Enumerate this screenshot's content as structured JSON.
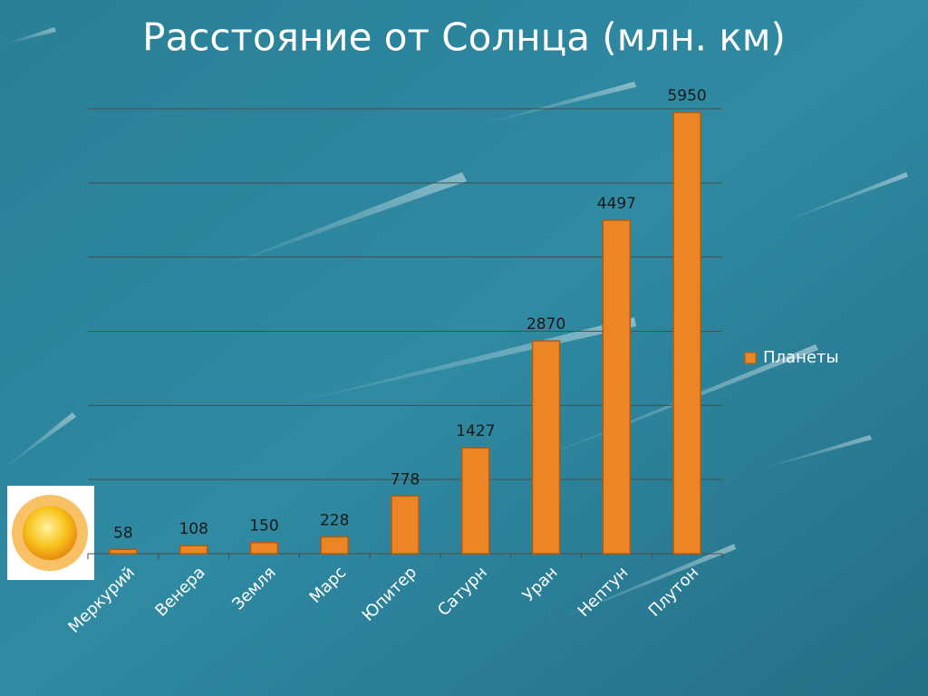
{
  "chart_data": {
    "type": "bar",
    "title": "Расстояние от Солнца (млн. км)",
    "categories": [
      "Меркурий",
      "Венера",
      "Земля",
      "Марс",
      "Юпитер",
      "Сатурн",
      "Уран",
      "Нептун",
      "Плутон"
    ],
    "series": [
      {
        "name": "Планеты",
        "color": "#ec8526",
        "values": [
          58,
          108,
          150,
          228,
          778,
          1427,
          2870,
          4497,
          5950
        ]
      }
    ],
    "ylim": [
      0,
      6000
    ],
    "yticks": [
      0,
      1000,
      2000,
      3000,
      4000,
      5000,
      6000
    ],
    "grid": true,
    "legend": "right"
  }
}
